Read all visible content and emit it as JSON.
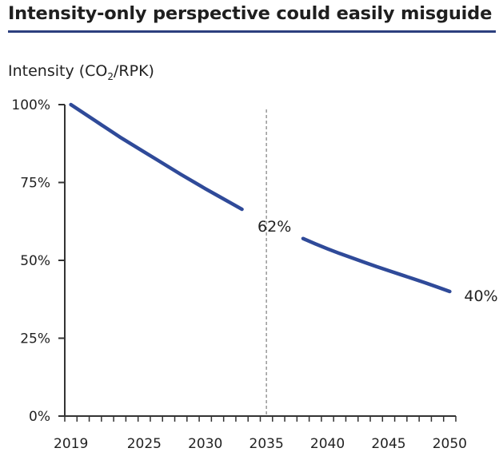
{
  "chart_data": {
    "type": "line",
    "title": "Intensity-only perspective could easily misguide",
    "ylabel": {
      "prefix": "Intensity (CO",
      "sub": "2",
      "suffix": "/RPK)"
    },
    "xlabel": "",
    "ylim": [
      0,
      100
    ],
    "yticks": [
      "0%",
      "25%",
      "50%",
      "75%",
      "100%"
    ],
    "ytick_values": [
      0,
      25,
      50,
      75,
      100
    ],
    "categories": [
      2019,
      2020,
      2021,
      2022,
      2023,
      2024,
      2025,
      2026,
      2027,
      2028,
      2029,
      2030,
      2031,
      2032,
      2033,
      2034,
      2035,
      2036,
      2037,
      2038,
      2039,
      2040,
      2041,
      2042,
      2043,
      2044,
      2045,
      2046,
      2047,
      2048,
      2049,
      2050
    ],
    "xtick_labels": [
      "2019",
      "2025",
      "2030",
      "2035",
      "2040",
      "2045",
      "2050"
    ],
    "grid": false,
    "color": "#2f4a99",
    "marker_line": {
      "x": 2035,
      "style": "dashed",
      "color": "#888888"
    },
    "series": [
      {
        "segment": 1,
        "x": [
          2019,
          2020,
          2021,
          2022,
          2023,
          2024,
          2025,
          2026,
          2027,
          2028,
          2029,
          2030,
          2031,
          2032,
          2033
        ],
        "values": [
          100,
          97.4,
          94.8,
          92.2,
          89.6,
          87.2,
          84.8,
          82.4,
          80.0,
          77.6,
          75.3,
          73.0,
          70.8,
          68.6,
          66.4
        ]
      },
      {
        "segment": 2,
        "x": [
          2038,
          2039,
          2040,
          2041,
          2042,
          2043,
          2044,
          2045,
          2046,
          2047,
          2048,
          2049,
          2050
        ],
        "values": [
          57,
          55.3,
          53.7,
          52.2,
          50.8,
          49.4,
          48.0,
          46.7,
          45.4,
          44.1,
          42.8,
          41.4,
          40
        ]
      }
    ],
    "annotations": [
      {
        "text": "62%",
        "x": 2035,
        "y": 62
      },
      {
        "text": "40%",
        "x": 2050,
        "y": 40
      }
    ]
  }
}
